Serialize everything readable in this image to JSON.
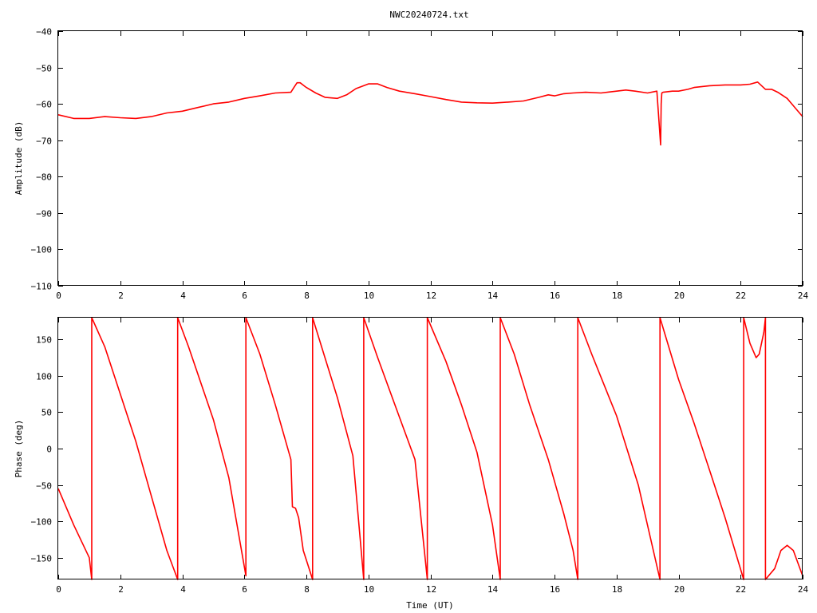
{
  "title": "NWC20240724.txt",
  "colors": {
    "series": "#ff0000",
    "axes": "#000000",
    "background": "#ffffff"
  },
  "chart_data": [
    {
      "type": "line",
      "title": "NWC20240724.txt",
      "xlabel": "",
      "ylabel": "Amplitude (dB)",
      "xlim": [
        0,
        24
      ],
      "ylim": [
        -110,
        -40
      ],
      "xticks": [
        0,
        2,
        4,
        6,
        8,
        10,
        12,
        14,
        16,
        18,
        20,
        22,
        24
      ],
      "yticks": [
        -40,
        -50,
        -60,
        -70,
        -80,
        -90,
        -100,
        -110
      ],
      "xtick_labels": [
        "0",
        "2",
        "4",
        "6",
        "8",
        "10",
        "12",
        "14",
        "16",
        "18",
        "20",
        "22",
        "24"
      ],
      "ytick_labels": [
        "−40",
        "−50",
        "−60",
        "−70",
        "−80",
        "−90",
        "−100",
        "−110"
      ],
      "grid": false,
      "legend": "none",
      "series": [
        {
          "x": [
            0,
            0.5,
            1.0,
            1.5,
            2.0,
            2.5,
            3.0,
            3.5,
            4.0,
            4.5,
            5.0,
            5.5,
            6.0,
            6.5,
            7.0,
            7.5,
            7.6,
            7.7,
            7.8,
            8.0,
            8.3,
            8.6,
            9.0,
            9.3,
            9.6,
            10.0,
            10.3,
            10.6,
            11.0,
            11.5,
            12.0,
            12.5,
            13.0,
            13.5,
            14.0,
            14.5,
            15.0,
            15.5,
            15.8,
            16.0,
            16.3,
            16.6,
            17.0,
            17.5,
            18.0,
            18.3,
            18.6,
            19.0,
            19.3,
            19.42,
            19.44,
            19.46,
            19.5,
            19.8,
            20.0,
            20.3,
            20.5,
            21.0,
            21.5,
            22.0,
            22.3,
            22.55,
            22.8,
            23.0,
            23.2,
            23.5,
            23.8,
            24.0
          ],
          "y": [
            -63,
            -64,
            -64,
            -63.5,
            -63.8,
            -64,
            -63.5,
            -62.5,
            -62,
            -61,
            -60,
            -59.5,
            -58.5,
            -57.8,
            -57,
            -56.8,
            -55.5,
            -54.2,
            -54.2,
            -55.5,
            -57,
            -58.2,
            -58.5,
            -57.5,
            -55.8,
            -54.5,
            -54.5,
            -55.5,
            -56.5,
            -57.2,
            -58,
            -58.8,
            -59.5,
            -59.7,
            -59.8,
            -59.5,
            -59.2,
            -58.2,
            -57.5,
            -57.8,
            -57.2,
            -57,
            -56.8,
            -57,
            -56.5,
            -56.2,
            -56.5,
            -57,
            -56.5,
            -71.3,
            -60,
            -57,
            -56.8,
            -56.5,
            -56.5,
            -56,
            -55.5,
            -55,
            -54.8,
            -54.8,
            -54.6,
            -54,
            -56,
            -56,
            -56.8,
            -58.5,
            -61.5,
            -63.5
          ]
        }
      ]
    },
    {
      "type": "line",
      "title": "",
      "xlabel": "Time (UT)",
      "ylabel": "Phase (deg)",
      "xlim": [
        0,
        24
      ],
      "ylim": [
        -180,
        180
      ],
      "xticks": [
        0,
        2,
        4,
        6,
        8,
        10,
        12,
        14,
        16,
        18,
        20,
        22,
        24
      ],
      "yticks": [
        150,
        100,
        50,
        0,
        -50,
        -100,
        -150
      ],
      "xtick_labels": [
        "0",
        "2",
        "4",
        "6",
        "8",
        "10",
        "12",
        "14",
        "16",
        "18",
        "20",
        "22",
        "24"
      ],
      "ytick_labels": [
        "150",
        "100",
        "50",
        "0",
        "−50",
        "−100",
        "−150"
      ],
      "grid": false,
      "legend": "none",
      "series": [
        {
          "x": [
            0,
            0.5,
            1.0,
            1.08,
            1.08,
            1.5,
            2.0,
            2.5,
            3.0,
            3.5,
            3.85,
            3.85,
            4.2,
            5.0,
            5.5,
            6.05,
            6.05,
            6.5,
            7.0,
            7.5,
            7.55,
            7.65,
            7.75,
            7.9,
            8.2,
            8.2,
            8.6,
            9.0,
            9.5,
            9.85,
            9.85,
            10.3,
            10.9,
            11.5,
            11.9,
            11.9,
            12.5,
            13.0,
            13.5,
            14.0,
            14.25,
            14.25,
            14.7,
            15.2,
            15.8,
            16.3,
            16.6,
            16.75,
            16.75,
            17.2,
            18.0,
            18.7,
            19.4,
            19.4,
            20.0,
            20.5,
            21.0,
            21.5,
            22.1,
            22.1,
            22.3,
            22.5,
            22.6,
            22.75,
            22.8,
            22.8,
            23.1,
            23.3,
            23.5,
            23.7,
            24.0
          ],
          "y": [
            -55,
            -105,
            -150,
            -180,
            180,
            140,
            75,
            10,
            -65,
            -140,
            -180,
            180,
            140,
            40,
            -40,
            -175,
            180,
            130,
            60,
            -15,
            -80,
            -82,
            -95,
            -140,
            -180,
            180,
            125,
            70,
            -10,
            -180,
            180,
            125,
            55,
            -15,
            -180,
            180,
            120,
            60,
            -5,
            -105,
            -180,
            180,
            130,
            60,
            -15,
            -90,
            -140,
            -180,
            180,
            130,
            45,
            -50,
            -180,
            180,
            95,
            35,
            -30,
            -95,
            -180,
            180,
            145,
            125,
            130,
            160,
            180,
            -180,
            -165,
            -140,
            -133,
            -140,
            -175
          ]
        }
      ]
    }
  ]
}
